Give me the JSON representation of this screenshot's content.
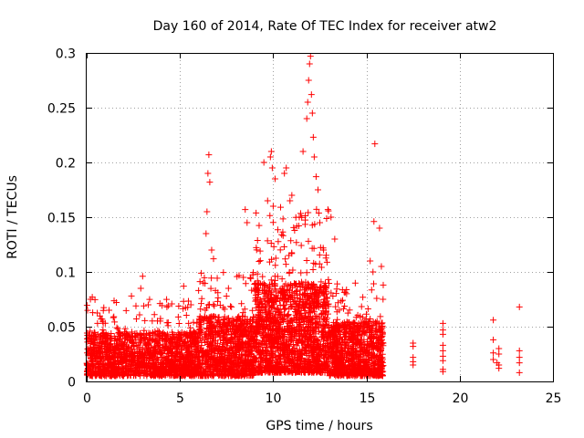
{
  "chart_data": {
    "type": "scatter",
    "title": "Day 160 of 2014, Rate Of TEC Index for receiver atw2",
    "xlabel": "GPS time / hours",
    "ylabel": "ROTI / TECUs",
    "xlim": [
      0,
      25
    ],
    "ylim": [
      0,
      0.3
    ],
    "xticks": [
      0,
      5,
      10,
      15,
      20,
      25
    ],
    "xtick_labels": [
      "0",
      "5",
      "10",
      "15",
      "20",
      "25"
    ],
    "yticks": [
      0,
      0.05,
      0.1,
      0.15,
      0.2,
      0.25,
      0.3
    ],
    "ytick_labels": [
      "0",
      "0.05",
      "0.1",
      "0.15",
      "0.2",
      "0.25",
      "0.3"
    ],
    "grid": true,
    "marker": "+",
    "color": "#ff0000",
    "series": [
      {
        "name": "ROTI",
        "density_profile": [
          {
            "x": [
              0.0,
              6.0
            ],
            "base": [
              0.005,
              0.045
            ],
            "peak": 0.075,
            "count": 1500
          },
          {
            "x": [
              6.0,
              9.0
            ],
            "base": [
              0.005,
              0.06
            ],
            "peak": 0.1,
            "count": 900
          },
          {
            "x": [
              9.0,
              13.0
            ],
            "base": [
              0.008,
              0.09
            ],
            "peak": 0.16,
            "count": 1500
          },
          {
            "x": [
              13.0,
              15.9
            ],
            "base": [
              0.005,
              0.055
            ],
            "peak": 0.09,
            "count": 900
          }
        ],
        "points": [
          [
            0.2,
            0.075
          ],
          [
            0.3,
            0.077
          ],
          [
            1.2,
            0.065
          ],
          [
            2.4,
            0.078
          ],
          [
            2.9,
            0.085
          ],
          [
            3.0,
            0.096
          ],
          [
            3.3,
            0.07
          ],
          [
            4.3,
            0.068
          ],
          [
            5.2,
            0.087
          ],
          [
            6.0,
            0.083
          ],
          [
            6.4,
            0.135
          ],
          [
            6.45,
            0.155
          ],
          [
            6.5,
            0.19
          ],
          [
            6.55,
            0.207
          ],
          [
            6.6,
            0.182
          ],
          [
            6.7,
            0.12
          ],
          [
            6.8,
            0.112
          ],
          [
            7.6,
            0.085
          ],
          [
            8.4,
            0.095
          ],
          [
            8.5,
            0.157
          ],
          [
            8.6,
            0.145
          ],
          [
            8.8,
            0.094
          ],
          [
            9.5,
            0.2
          ],
          [
            9.7,
            0.165
          ],
          [
            9.85,
            0.205
          ],
          [
            9.9,
            0.21
          ],
          [
            9.95,
            0.195
          ],
          [
            10.0,
            0.16
          ],
          [
            10.1,
            0.185
          ],
          [
            10.6,
            0.19
          ],
          [
            10.7,
            0.195
          ],
          [
            10.9,
            0.165
          ],
          [
            11.0,
            0.17
          ],
          [
            11.4,
            0.15
          ],
          [
            11.6,
            0.21
          ],
          [
            11.8,
            0.24
          ],
          [
            11.85,
            0.255
          ],
          [
            11.9,
            0.275
          ],
          [
            11.95,
            0.29
          ],
          [
            12.0,
            0.297
          ],
          [
            12.05,
            0.262
          ],
          [
            12.1,
            0.245
          ],
          [
            12.15,
            0.223
          ],
          [
            12.2,
            0.205
          ],
          [
            12.3,
            0.187
          ],
          [
            12.4,
            0.175
          ],
          [
            12.5,
            0.145
          ],
          [
            12.7,
            0.12
          ],
          [
            13.1,
            0.15
          ],
          [
            13.3,
            0.13
          ],
          [
            15.2,
            0.11
          ],
          [
            15.35,
            0.1
          ],
          [
            15.4,
            0.146
          ],
          [
            15.45,
            0.217
          ],
          [
            15.7,
            0.14
          ],
          [
            15.8,
            0.105
          ],
          [
            15.9,
            0.088
          ],
          [
            17.5,
            0.035
          ],
          [
            17.5,
            0.032
          ],
          [
            17.5,
            0.022
          ],
          [
            17.5,
            0.018
          ],
          [
            17.5,
            0.015
          ],
          [
            19.1,
            0.053
          ],
          [
            19.1,
            0.047
          ],
          [
            19.1,
            0.043
          ],
          [
            19.1,
            0.033
          ],
          [
            19.1,
            0.028
          ],
          [
            19.1,
            0.023
          ],
          [
            19.1,
            0.019
          ],
          [
            19.1,
            0.011
          ],
          [
            21.8,
            0.056
          ],
          [
            21.8,
            0.038
          ],
          [
            21.8,
            0.026
          ],
          [
            21.8,
            0.02
          ],
          [
            22.1,
            0.03
          ],
          [
            22.1,
            0.025
          ],
          [
            22.1,
            0.015
          ],
          [
            22.1,
            0.012
          ],
          [
            23.2,
            0.068
          ],
          [
            23.2,
            0.028
          ],
          [
            23.2,
            0.022
          ],
          [
            23.2,
            0.017
          ],
          [
            23.2,
            0.008
          ],
          [
            19.1,
            0.009
          ],
          [
            22.0,
            0.017
          ]
        ]
      }
    ]
  }
}
